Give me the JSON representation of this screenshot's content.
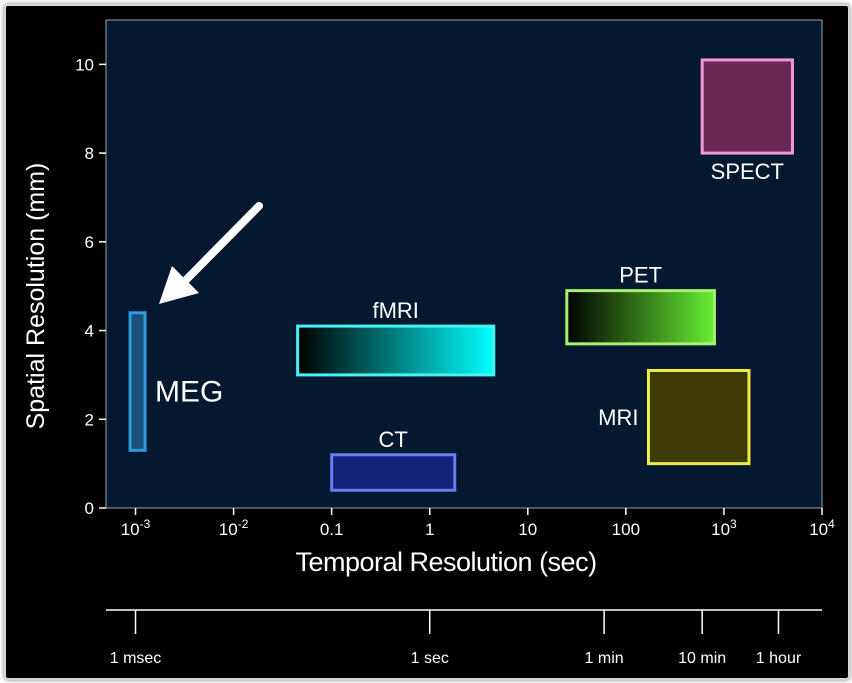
{
  "chart_data": {
    "type": "range-boxes",
    "xlabel": "Temporal Resolution (sec)",
    "ylabel": "Spatial Resolution (mm)",
    "x_scale": "log10",
    "xlim": [
      0.0005,
      10000
    ],
    "ylim": [
      0,
      11
    ],
    "x_ticks": [
      {
        "value": 0.001,
        "base": "10",
        "exp": "-3"
      },
      {
        "value": 0.01,
        "base": "10",
        "exp": "-2"
      },
      {
        "value": 0.1,
        "label": "0.1"
      },
      {
        "value": 1,
        "label": "1"
      },
      {
        "value": 10,
        "label": "10"
      },
      {
        "value": 100,
        "label": "100"
      },
      {
        "value": 1000,
        "base": "10",
        "exp": "3"
      },
      {
        "value": 10000,
        "base": "10",
        "exp": "4"
      }
    ],
    "y_ticks": [
      0,
      2,
      4,
      6,
      8,
      10
    ],
    "modalities": [
      {
        "name": "MEG",
        "x_min": 0.00088,
        "x_max": 0.00125,
        "y_min": 1.3,
        "y_max": 4.4,
        "fill": "#1a4f7a",
        "stroke": "#2f9be0",
        "label_pos": "right"
      },
      {
        "name": "fMRI",
        "x_min": 0.045,
        "x_max": 4.5,
        "y_min": 3.0,
        "y_max": 4.1,
        "fill_from": "#000000",
        "fill_to": "#00ffff",
        "stroke": "#4af2f2",
        "label_pos": "top"
      },
      {
        "name": "CT",
        "x_min": 0.1,
        "x_max": 1.8,
        "y_min": 0.4,
        "y_max": 1.2,
        "fill": "#13237a",
        "stroke": "#6a7cf0",
        "label_pos": "top"
      },
      {
        "name": "PET",
        "x_min": 25,
        "x_max": 800,
        "y_min": 3.7,
        "y_max": 4.9,
        "fill_from": "#000000",
        "fill_to": "#66ee33",
        "stroke": "#a8f070",
        "label_pos": "top"
      },
      {
        "name": "MRI",
        "x_min": 170,
        "x_max": 1800,
        "y_min": 1.0,
        "y_max": 3.1,
        "fill": "#3d3a05",
        "stroke": "#f0ec40",
        "label_pos": "left"
      },
      {
        "name": "SPECT",
        "x_min": 600,
        "x_max": 5000,
        "y_min": 8.0,
        "y_max": 10.1,
        "fill": "#6b2756",
        "stroke": "#f098d8",
        "label_pos": "bottom"
      }
    ],
    "time_scale": [
      {
        "label": "1 msec",
        "value": 0.001
      },
      {
        "label": "1 sec",
        "value": 1
      },
      {
        "label": "1 min",
        "value": 60
      },
      {
        "label": "10 min",
        "value": 600
      },
      {
        "label": "1 hour",
        "value": 3600
      }
    ]
  },
  "colors": {
    "plot_bg": "#041830",
    "text": "#ffffff",
    "axis": "#ffffff"
  }
}
